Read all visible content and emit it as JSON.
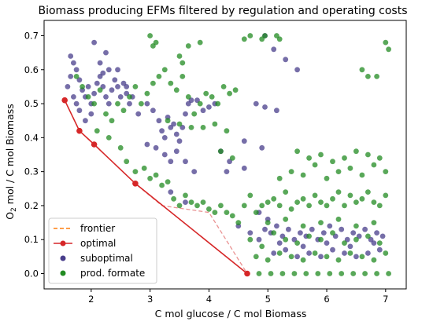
{
  "chart_data": {
    "type": "scatter",
    "title": "Biomass producing EFMs filtered by regulation and operating costs",
    "xlabel": "C mol glucose / C mol Biomass",
    "ylabel_main": "O",
    "ylabel_sub": "2",
    "ylabel_rest": " mol / C mol Biomass",
    "xlim": [
      1.2,
      7.35
    ],
    "ylim": [
      -0.045,
      0.745
    ],
    "xticks": [
      2,
      3,
      4,
      5,
      6,
      7
    ],
    "yticks": [
      0.0,
      0.1,
      0.2,
      0.3,
      0.4,
      0.5,
      0.6,
      0.7
    ],
    "grid": false,
    "legend_position": "lower-left",
    "colors": {
      "frontier": "#ff7f0e",
      "optimal": "#d62728",
      "suboptimal": "#483d8b",
      "prod_formate": "#228b22"
    },
    "series": [
      {
        "name": "frontier",
        "style": "dashed-line",
        "x": [
          1.55,
          1.8,
          2.05,
          2.75,
          3.2,
          4.0,
          4.65
        ],
        "y": [
          0.51,
          0.42,
          0.38,
          0.265,
          0.2,
          0.18,
          0.0
        ]
      },
      {
        "name": "optimal",
        "style": "line-markers",
        "x": [
          1.55,
          1.8,
          2.05,
          2.75,
          4.65
        ],
        "y": [
          0.51,
          0.42,
          0.38,
          0.265,
          0.0
        ]
      },
      {
        "name": "suboptimal",
        "style": "markers",
        "x": [
          1.6,
          1.65,
          1.7,
          1.75,
          1.8,
          1.85,
          1.9,
          1.95,
          2.0,
          2.05,
          2.1,
          2.15,
          2.2,
          2.25,
          2.3,
          2.35,
          2.4,
          2.45,
          2.5,
          2.55,
          2.6,
          2.65,
          2.7,
          2.15,
          2.2,
          2.3,
          2.0,
          1.9,
          1.8,
          1.75,
          1.7,
          1.65,
          2.05,
          2.25,
          2.45,
          2.6,
          2.8,
          2.95,
          3.05,
          3.15,
          3.2,
          3.25,
          3.3,
          3.35,
          3.4,
          3.45,
          3.5,
          3.55,
          3.6,
          3.65,
          3.7,
          3.8,
          3.9,
          4.0,
          4.1,
          3.1,
          3.25,
          3.35,
          2.95,
          3.45,
          3.6,
          3.75,
          4.2,
          4.35,
          4.6,
          4.8,
          4.95,
          5.15,
          4.3,
          4.6,
          4.9,
          3.35,
          3.6,
          4.5,
          4.7,
          4.85,
          4.95,
          5.05,
          5.15,
          5.25,
          5.35,
          5.45,
          5.55,
          5.65,
          5.75,
          5.85,
          5.95,
          6.05,
          6.15,
          6.25,
          6.35,
          6.45,
          6.55,
          6.65,
          6.75,
          6.85,
          6.95,
          5.1,
          5.3,
          5.5,
          5.7,
          5.9,
          6.1,
          6.3,
          6.5,
          6.7,
          6.9,
          5.2,
          5.6,
          6.0,
          6.4,
          6.8,
          4.95,
          5.1,
          5.3,
          5.5,
          4.85,
          5.0
        ],
        "y": [
          0.55,
          0.58,
          0.62,
          0.6,
          0.57,
          0.54,
          0.52,
          0.55,
          0.5,
          0.53,
          0.56,
          0.58,
          0.55,
          0.52,
          0.5,
          0.54,
          0.57,
          0.55,
          0.52,
          0.56,
          0.53,
          0.5,
          0.52,
          0.62,
          0.59,
          0.6,
          0.47,
          0.45,
          0.48,
          0.5,
          0.52,
          0.64,
          0.68,
          0.65,
          0.6,
          0.55,
          0.47,
          0.5,
          0.48,
          0.45,
          0.42,
          0.4,
          0.46,
          0.43,
          0.44,
          0.41,
          0.39,
          0.43,
          0.47,
          0.5,
          0.51,
          0.51,
          0.48,
          0.49,
          0.5,
          0.37,
          0.35,
          0.33,
          0.38,
          0.36,
          0.33,
          0.3,
          0.36,
          0.33,
          0.31,
          0.5,
          0.49,
          0.48,
          0.3,
          0.39,
          0.37,
          0.24,
          0.21,
          0.14,
          0.12,
          0.1,
          0.13,
          0.12,
          0.14,
          0.11,
          0.13,
          0.1,
          0.12,
          0.11,
          0.13,
          0.1,
          0.12,
          0.14,
          0.11,
          0.13,
          0.1,
          0.12,
          0.11,
          0.13,
          0.1,
          0.12,
          0.11,
          0.06,
          0.07,
          0.05,
          0.06,
          0.05,
          0.07,
          0.06,
          0.05,
          0.06,
          0.07,
          0.09,
          0.08,
          0.09,
          0.08,
          0.09,
          0.7,
          0.66,
          0.63,
          0.6,
          0.18,
          0.16
        ]
      },
      {
        "name": "prod. formate",
        "style": "markers",
        "x": [
          1.75,
          1.85,
          1.95,
          2.05,
          2.15,
          2.25,
          2.35,
          2.45,
          2.55,
          2.65,
          2.75,
          2.85,
          2.95,
          3.05,
          3.15,
          3.25,
          3.35,
          3.45,
          3.55,
          3.65,
          3.75,
          3.85,
          3.95,
          4.05,
          4.15,
          4.25,
          4.35,
          4.45,
          3.0,
          3.05,
          3.1,
          3.5,
          3.55,
          3.65,
          3.85,
          4.6,
          4.7,
          4.9,
          4.95,
          5.15,
          5.2,
          6.6,
          6.7,
          6.85,
          7.0,
          7.05,
          2.5,
          2.6,
          2.75,
          2.9,
          3.0,
          3.1,
          3.2,
          3.3,
          3.4,
          3.5,
          3.6,
          3.7,
          3.8,
          3.9,
          4.0,
          4.1,
          4.2,
          4.3,
          4.4,
          4.5,
          4.6,
          4.7,
          4.8,
          4.9,
          5.0,
          5.1,
          5.2,
          5.3,
          5.4,
          5.5,
          5.6,
          5.7,
          5.8,
          5.9,
          6.0,
          6.1,
          6.2,
          6.3,
          6.4,
          6.5,
          6.6,
          6.7,
          6.8,
          6.9,
          7.0,
          5.2,
          5.4,
          5.6,
          5.8,
          6.0,
          6.2,
          6.4,
          6.6,
          6.8,
          7.0,
          5.5,
          5.7,
          5.9,
          6.1,
          6.3,
          6.5,
          6.7,
          6.9,
          4.7,
          4.9,
          5.1,
          5.3,
          5.5,
          5.7,
          5.9,
          6.1,
          6.3,
          6.5,
          6.7,
          6.9,
          4.8,
          5.0,
          5.2,
          5.4,
          5.6,
          5.8,
          6.0,
          6.2,
          6.4,
          6.6,
          6.8,
          7.0,
          4.65,
          4.85,
          5.05,
          5.25,
          5.45,
          5.65,
          5.85,
          6.05,
          6.25,
          6.45,
          6.65,
          6.85,
          7.05,
          5.0,
          5.3,
          5.6,
          5.9,
          6.2,
          6.5,
          6.8,
          3.9,
          4.1,
          4.3,
          4.2,
          4.4,
          3.3,
          3.5,
          3.7,
          2.1,
          2.3
        ],
        "y": [
          0.58,
          0.55,
          0.52,
          0.5,
          0.54,
          0.47,
          0.45,
          0.5,
          0.48,
          0.52,
          0.55,
          0.5,
          0.53,
          0.56,
          0.58,
          0.6,
          0.56,
          0.54,
          0.58,
          0.52,
          0.47,
          0.5,
          0.53,
          0.52,
          0.5,
          0.55,
          0.53,
          0.54,
          0.7,
          0.67,
          0.68,
          0.64,
          0.62,
          0.67,
          0.68,
          0.69,
          0.7,
          0.69,
          0.7,
          0.7,
          0.69,
          0.6,
          0.58,
          0.58,
          0.68,
          0.66,
          0.37,
          0.33,
          0.3,
          0.31,
          0.28,
          0.29,
          0.26,
          0.27,
          0.22,
          0.2,
          0.23,
          0.21,
          0.2,
          0.21,
          0.19,
          0.18,
          0.2,
          0.18,
          0.17,
          0.15,
          0.2,
          0.23,
          0.18,
          0.2,
          0.21,
          0.22,
          0.2,
          0.24,
          0.19,
          0.21,
          0.22,
          0.2,
          0.23,
          0.21,
          0.2,
          0.22,
          0.24,
          0.2,
          0.23,
          0.21,
          0.22,
          0.24,
          0.21,
          0.2,
          0.23,
          0.28,
          0.3,
          0.29,
          0.32,
          0.28,
          0.3,
          0.31,
          0.29,
          0.32,
          0.3,
          0.36,
          0.34,
          0.35,
          0.33,
          0.34,
          0.36,
          0.35,
          0.34,
          0.1,
          0.08,
          0.12,
          0.1,
          0.09,
          0.11,
          0.1,
          0.12,
          0.09,
          0.1,
          0.11,
          0.09,
          0.05,
          0.04,
          0.06,
          0.05,
          0.04,
          0.06,
          0.05,
          0.04,
          0.06,
          0.05,
          0.04,
          0.06,
          0.0,
          0.0,
          0.0,
          0.0,
          0.0,
          0.0,
          0.0,
          0.0,
          0.0,
          0.0,
          0.0,
          0.0,
          0.0,
          0.15,
          0.16,
          0.14,
          0.15,
          0.16,
          0.14,
          0.15,
          0.43,
          0.44,
          0.42,
          0.36,
          0.34,
          0.45,
          0.44,
          0.43,
          0.42,
          0.4
        ]
      }
    ],
    "legend": [
      "frontier",
      "optimal",
      "suboptimal",
      "prod. formate"
    ]
  }
}
